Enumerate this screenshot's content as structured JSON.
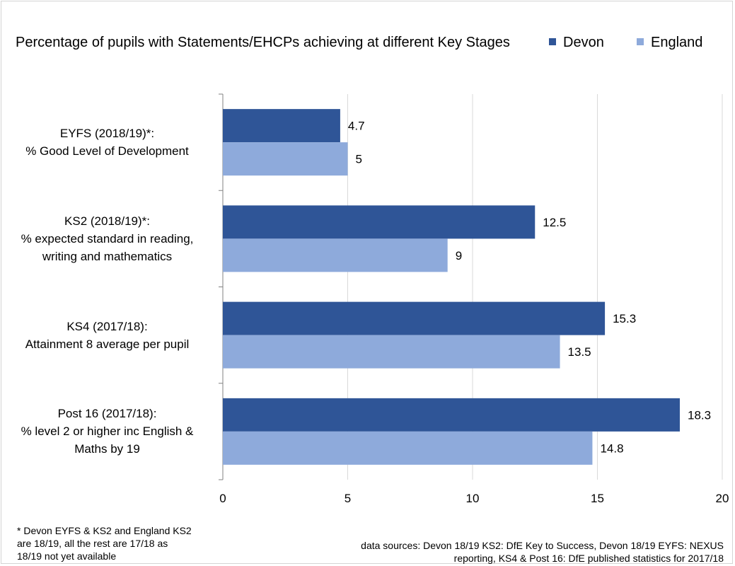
{
  "chart_data": {
    "type": "bar",
    "orientation": "horizontal",
    "title": "Percentage of pupils with Statements/EHCPs achieving at different Key Stages",
    "categories": [
      [
        "EYFS (2018/19)*:",
        "% Good Level of Development"
      ],
      [
        "KS2 (2018/19)*:",
        "%  expected standard in reading,",
        "writing and mathematics"
      ],
      [
        "KS4 (2017/18):",
        "Attainment 8 average per pupil"
      ],
      [
        "Post 16 (2017/18):",
        "% level 2 or higher inc English &",
        "Maths by 19"
      ]
    ],
    "series": [
      {
        "name": "Devon",
        "color": "#2f5597",
        "values": [
          4.7,
          12.5,
          15.3,
          18.3
        ],
        "labels": [
          "4.7",
          "12.5",
          "15.3",
          "18.3"
        ]
      },
      {
        "name": "England",
        "color": "#8eaadb",
        "values": [
          5,
          9,
          13.5,
          14.8
        ],
        "labels": [
          "5",
          "9",
          "13.5",
          "14.8"
        ]
      }
    ],
    "xlim": [
      0,
      20
    ],
    "xticks": [
      0,
      5,
      10,
      15,
      20
    ],
    "xlabel": "",
    "ylabel": "",
    "grid": "vertical",
    "legend_position": "top-right"
  },
  "footnotes": {
    "left": [
      "* Devon EYFS & KS2 and England KS2",
      "  are 18/19,  all the rest are 17/18 as",
      "  18/19 not yet available"
    ],
    "right": [
      "data sources: Devon 18/19 KS2: DfE Key to Success, Devon 18/19 EYFS: NEXUS",
      "reporting, KS4 & Post 16: DfE published statistics for 2017/18"
    ]
  }
}
